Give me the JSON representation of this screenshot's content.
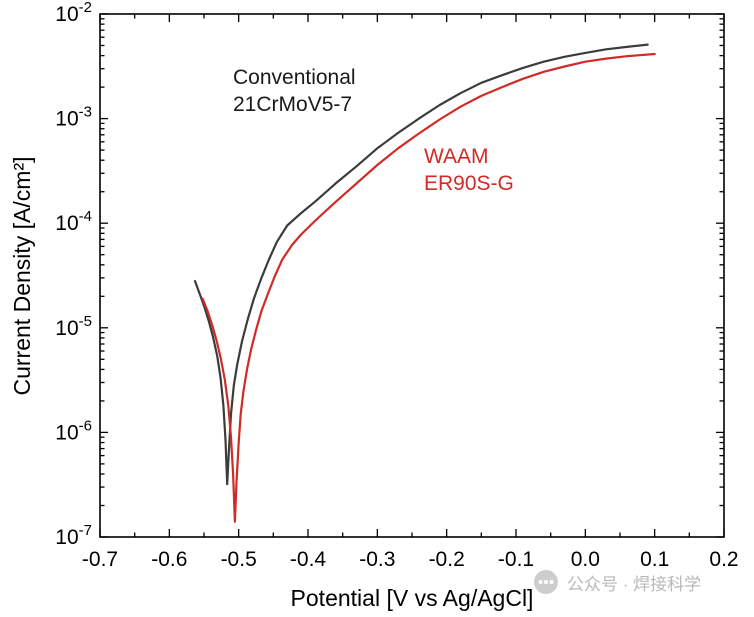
{
  "figure": {
    "background": "#ffffff"
  },
  "chart_data": {
    "type": "line",
    "title": "",
    "xlabel": "Potential [V vs Ag/AgCl]",
    "ylabel": "Current Density [A/cm²]",
    "x_scale": "linear",
    "y_scale": "log",
    "xlim": [
      -0.7,
      0.2
    ],
    "ylim": [
      1e-07,
      0.01
    ],
    "grid": false,
    "legend_position": "none (curves labeled by inline annotations)",
    "x_axis": {
      "min": -0.7,
      "max": 0.2,
      "major_tick_step": 0.1,
      "minor_tick_step": 0.05,
      "tick_labels": [
        "-0.7",
        "-0.6",
        "-0.5",
        "-0.4",
        "-0.3",
        "-0.2",
        "-0.1",
        "0.0",
        "0.1",
        "0.2"
      ]
    },
    "y_axis": {
      "scale": "log",
      "min_exponent": -7,
      "max_exponent": -2,
      "tick_label_base": "10",
      "tick_exponents": [
        -2,
        -3,
        -4,
        -5,
        -6,
        -7
      ]
    },
    "series": [
      {
        "name": "Conventional 21CrMoV5-7",
        "color": "#3c3c3c",
        "line_width": 2.2,
        "corrosion_potential_V": -0.517,
        "points": [
          [
            -0.563,
            2.8e-05
          ],
          [
            -0.556,
            2.1e-05
          ],
          [
            -0.549,
            1.55e-05
          ],
          [
            -0.543,
            1.15e-05
          ],
          [
            -0.537,
            8.2e-06
          ],
          [
            -0.531,
            5.4e-06
          ],
          [
            -0.526,
            3.3e-06
          ],
          [
            -0.522,
            1.8e-06
          ],
          [
            -0.519,
            8.5e-07
          ],
          [
            -0.5165,
            3.2e-07
          ],
          [
            -0.514,
            7e-07
          ],
          [
            -0.511,
            1.5e-06
          ],
          [
            -0.507,
            2.8e-06
          ],
          [
            -0.502,
            4.5e-06
          ],
          [
            -0.495,
            7.5e-06
          ],
          [
            -0.487,
            1.2e-05
          ],
          [
            -0.478,
            1.9e-05
          ],
          [
            -0.468,
            2.9e-05
          ],
          [
            -0.457,
            4.4e-05
          ],
          [
            -0.445,
            6.6e-05
          ],
          [
            -0.43,
            9.5e-05
          ],
          [
            -0.41,
            0.000125
          ],
          [
            -0.39,
            0.00016
          ],
          [
            -0.36,
            0.00024
          ],
          [
            -0.33,
            0.00035
          ],
          [
            -0.3,
            0.00052
          ],
          [
            -0.27,
            0.00073
          ],
          [
            -0.24,
            0.001
          ],
          [
            -0.21,
            0.00135
          ],
          [
            -0.18,
            0.00175
          ],
          [
            -0.15,
            0.0022
          ],
          [
            -0.12,
            0.0026
          ],
          [
            -0.09,
            0.00305
          ],
          [
            -0.06,
            0.0035
          ],
          [
            -0.03,
            0.0039
          ],
          [
            0.0,
            0.00425
          ],
          [
            0.03,
            0.0046
          ],
          [
            0.06,
            0.00485
          ],
          [
            0.09,
            0.0051
          ]
        ]
      },
      {
        "name": "WAAM ER90S-G",
        "color": "#cf2b27",
        "line_width": 2.2,
        "corrosion_potential_V": -0.506,
        "points": [
          [
            -0.552,
            1.9e-05
          ],
          [
            -0.545,
            1.45e-05
          ],
          [
            -0.538,
            1.05e-05
          ],
          [
            -0.532,
            7.6e-06
          ],
          [
            -0.526,
            5.2e-06
          ],
          [
            -0.52,
            3.2e-06
          ],
          [
            -0.515,
            1.8e-06
          ],
          [
            -0.511,
            9e-07
          ],
          [
            -0.508,
            4e-07
          ],
          [
            -0.5055,
            1.4e-07
          ],
          [
            -0.503,
            3.5e-07
          ],
          [
            -0.5,
            8e-07
          ],
          [
            -0.497,
            1.5e-06
          ],
          [
            -0.493,
            2.5e-06
          ],
          [
            -0.488,
            4e-06
          ],
          [
            -0.482,
            6.2e-06
          ],
          [
            -0.475,
            9.5e-06
          ],
          [
            -0.467,
            1.45e-05
          ],
          [
            -0.458,
            2.1e-05
          ],
          [
            -0.448,
            3.1e-05
          ],
          [
            -0.437,
            4.5e-05
          ],
          [
            -0.423,
            6.2e-05
          ],
          [
            -0.41,
            7.8e-05
          ],
          [
            -0.39,
            0.000105
          ],
          [
            -0.36,
            0.00016
          ],
          [
            -0.33,
            0.00024
          ],
          [
            -0.3,
            0.00036
          ],
          [
            -0.27,
            0.00052
          ],
          [
            -0.24,
            0.00072
          ],
          [
            -0.21,
            0.00098
          ],
          [
            -0.18,
            0.0013
          ],
          [
            -0.15,
            0.00165
          ],
          [
            -0.12,
            0.002
          ],
          [
            -0.09,
            0.0024
          ],
          [
            -0.06,
            0.0028
          ],
          [
            -0.03,
            0.00315
          ],
          [
            0.0,
            0.0035
          ],
          [
            0.03,
            0.00375
          ],
          [
            0.06,
            0.00395
          ],
          [
            0.1,
            0.00415
          ]
        ]
      }
    ],
    "annotations": [
      {
        "text": "Conventional\n21CrMoV5-7",
        "color": "#1a1a1a",
        "anchor_data_coords": {
          "x": -0.51,
          "y": 0.0015
        }
      },
      {
        "text": "WAAM\nER90S-G",
        "color": "#cf2b27",
        "anchor_data_coords": {
          "x": -0.23,
          "y": 0.00028
        }
      }
    ]
  },
  "watermark": {
    "text": "公众号 · 焊接科学",
    "color": "#b9b9b9",
    "icon": "dots-circle-icon"
  }
}
